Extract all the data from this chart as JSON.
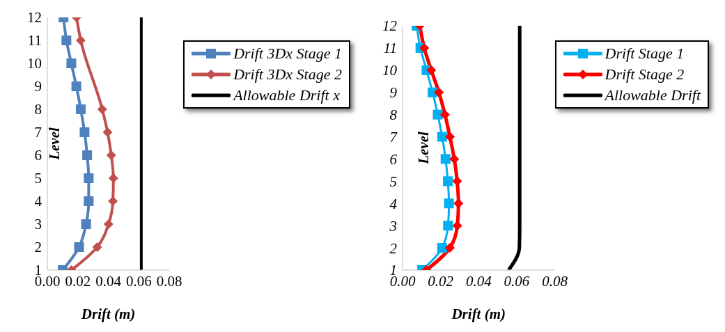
{
  "chart_data": [
    {
      "type": "line",
      "xlabel": "Drift (m)",
      "ylabel": "Level",
      "xlim": [
        0,
        0.08
      ],
      "xticks": [
        {
          "value": 0,
          "label": "0.00"
        },
        {
          "value": 0.02,
          "label": "0.02"
        },
        {
          "value": 0.04,
          "label": "0.04"
        },
        {
          "value": 0.06,
          "label": "0.06"
        },
        {
          "value": 0.08,
          "label": "0.08"
        }
      ],
      "ylim": [
        1,
        12
      ],
      "yticks": [
        1,
        2,
        3,
        4,
        5,
        6,
        7,
        8,
        9,
        10,
        11,
        12
      ],
      "grid": false,
      "legend": "top right",
      "series": [
        {
          "name": "Drift 3Dx Stage 1",
          "color": "#4f81bd",
          "marker": "square",
          "x": [
            0.0101,
            0.0208,
            0.0254,
            0.0271,
            0.0271,
            0.0261,
            0.0244,
            0.0219,
            0.019,
            0.0157,
            0.0125,
            0.0106
          ],
          "values": [
            1,
            2,
            3,
            4,
            5,
            6,
            7,
            8,
            9,
            10,
            11,
            12
          ]
        },
        {
          "name": "Drift 3Dx Stage 2",
          "color": "#c0504d",
          "marker": "diamond",
          "x": [
            0.0158,
            0.0327,
            0.0401,
            0.043,
            0.0433,
            0.0419,
            0.0395,
            0.036,
            null,
            null,
            0.0219,
            0.0191
          ],
          "values": [
            1,
            2,
            3,
            4,
            5,
            6,
            7,
            8,
            null,
            null,
            11,
            12
          ]
        },
        {
          "name": "Allowable Drift x",
          "color": "#000000",
          "marker": "none",
          "x": [
            0.0616,
            0.0616
          ],
          "values": [
            1,
            12
          ]
        }
      ]
    },
    {
      "type": "line",
      "xlabel": "Drift (m)",
      "ylabel": "Level",
      "xlim": [
        0,
        0.08
      ],
      "xticks": [
        {
          "value": 0,
          "label": "0.00"
        },
        {
          "value": 0.02,
          "label": "0.02"
        },
        {
          "value": 0.04,
          "label": "0.04"
        },
        {
          "value": 0.06,
          "label": "0.06"
        },
        {
          "value": 0.08,
          "label": "0.08"
        }
      ],
      "ylim": [
        1,
        12
      ],
      "yticks": [
        1,
        2,
        3,
        4,
        5,
        6,
        7,
        8,
        9,
        10,
        11,
        12
      ],
      "grid": false,
      "legend": "top right",
      "series": [
        {
          "name": "Drift Stage 1",
          "color": "#00b0f0",
          "marker": "square",
          "x": [
            0.0103,
            0.0208,
            0.0239,
            0.0244,
            0.0238,
            0.0226,
            0.0208,
            0.0185,
            0.0158,
            0.0126,
            0.0094,
            0.0074
          ],
          "values": [
            1,
            2,
            3,
            4,
            5,
            6,
            7,
            8,
            9,
            10,
            11,
            12
          ]
        },
        {
          "name": "Drift Stage 2",
          "color": "#ff0000",
          "marker": "diamond",
          "x": [
            0.0125,
            0.0249,
            0.0288,
            0.0294,
            0.0287,
            0.0272,
            0.0249,
            0.0223,
            0.0191,
            0.0151,
            0.0114,
            0.0091
          ],
          "values": [
            1,
            2,
            3,
            4,
            5,
            6,
            7,
            8,
            9,
            10,
            11,
            12
          ]
        },
        {
          "name": "Allowable Drift",
          "color": "#000000",
          "marker": "none",
          "x": [
            0.0558,
            0.0614,
            0.0616,
            0.0616,
            0.0616,
            0.0616,
            0.0616,
            0.0616,
            0.0616,
            0.0616,
            0.0616,
            0.0616
          ],
          "values": [
            1,
            2,
            3,
            4,
            5,
            6,
            7,
            8,
            9,
            10,
            11,
            12
          ]
        }
      ]
    }
  ]
}
